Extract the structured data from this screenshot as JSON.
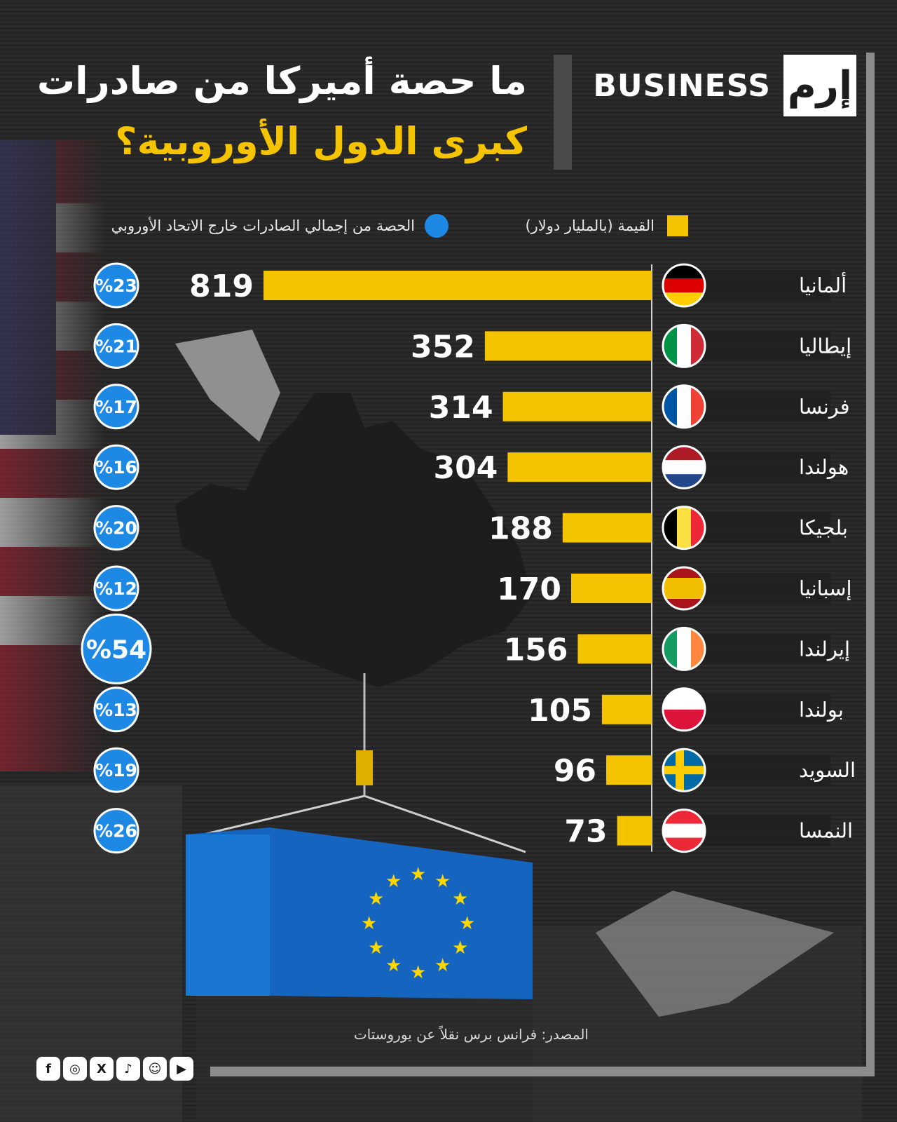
{
  "brand": {
    "mark": "إرم",
    "word": "BUSINESS"
  },
  "title": {
    "line1": "ما حصة أميركا من صادرات",
    "line2": "كبرى الدول الأوروبية؟"
  },
  "legend": {
    "value_label": "القيمة (بالمليار دولار)",
    "share_label": "الحصة من إجمالي الصادرات خارج الاتحاد الأوروبي"
  },
  "colors": {
    "bar": "#f5c400",
    "circle": "#1e88e5",
    "title_accent": "#f5c400"
  },
  "chart_data": {
    "type": "bar",
    "orientation": "horizontal",
    "title": "ما حصة أميركا من صادرات كبرى الدول الأوروبية؟",
    "series": [
      {
        "name": "القيمة (بالمليار دولار)",
        "values": [
          819,
          352,
          314,
          304,
          188,
          170,
          156,
          105,
          96,
          73
        ]
      },
      {
        "name": "الحصة من إجمالي الصادرات خارج الاتحاد الأوروبي",
        "values": [
          23,
          21,
          17,
          16,
          20,
          12,
          54,
          13,
          19,
          26
        ],
        "unit": "%"
      }
    ],
    "rows": [
      {
        "country": "ألمانيا",
        "flag": "germany-flag",
        "value": 819,
        "value_label": "819",
        "share": 23,
        "share_label": "%23"
      },
      {
        "country": "إيطاليا",
        "flag": "italy-flag",
        "value": 352,
        "value_label": "352",
        "share": 21,
        "share_label": "%21"
      },
      {
        "country": "فرنسا",
        "flag": "france-flag",
        "value": 314,
        "value_label": "314",
        "share": 17,
        "share_label": "%17"
      },
      {
        "country": "هولندا",
        "flag": "netherlands-flag",
        "value": 304,
        "value_label": "304",
        "share": 16,
        "share_label": "%16"
      },
      {
        "country": "بلجيكا",
        "flag": "belgium-flag",
        "value": 188,
        "value_label": "188",
        "share": 20,
        "share_label": "%20"
      },
      {
        "country": "إسبانيا",
        "flag": "spain-flag",
        "value": 170,
        "value_label": "170",
        "share": 12,
        "share_label": "%12"
      },
      {
        "country": "إيرلندا",
        "flag": "ireland-flag",
        "value": 156,
        "value_label": "156",
        "share": 54,
        "share_label": "%54"
      },
      {
        "country": "بولندا",
        "flag": "poland-flag",
        "value": 105,
        "value_label": "105",
        "share": 13,
        "share_label": "%13"
      },
      {
        "country": "السويد",
        "flag": "sweden-flag",
        "value": 96,
        "value_label": "96",
        "share": 19,
        "share_label": "%19"
      },
      {
        "country": "النمسا",
        "flag": "austria-flag",
        "value": 73,
        "value_label": "73",
        "share": 26,
        "share_label": "%26"
      }
    ]
  },
  "footer": {
    "source": "المصدر: فرانس برس نقلاً عن يوروستات",
    "socials": [
      {
        "icon": "facebook-icon",
        "glyph": "f"
      },
      {
        "icon": "instagram-icon",
        "glyph": "◎"
      },
      {
        "icon": "x-icon",
        "glyph": "X"
      },
      {
        "icon": "tiktok-icon",
        "glyph": "♪"
      },
      {
        "icon": "snapchat-icon",
        "glyph": "☺"
      },
      {
        "icon": "youtube-icon",
        "glyph": "▶"
      }
    ]
  }
}
